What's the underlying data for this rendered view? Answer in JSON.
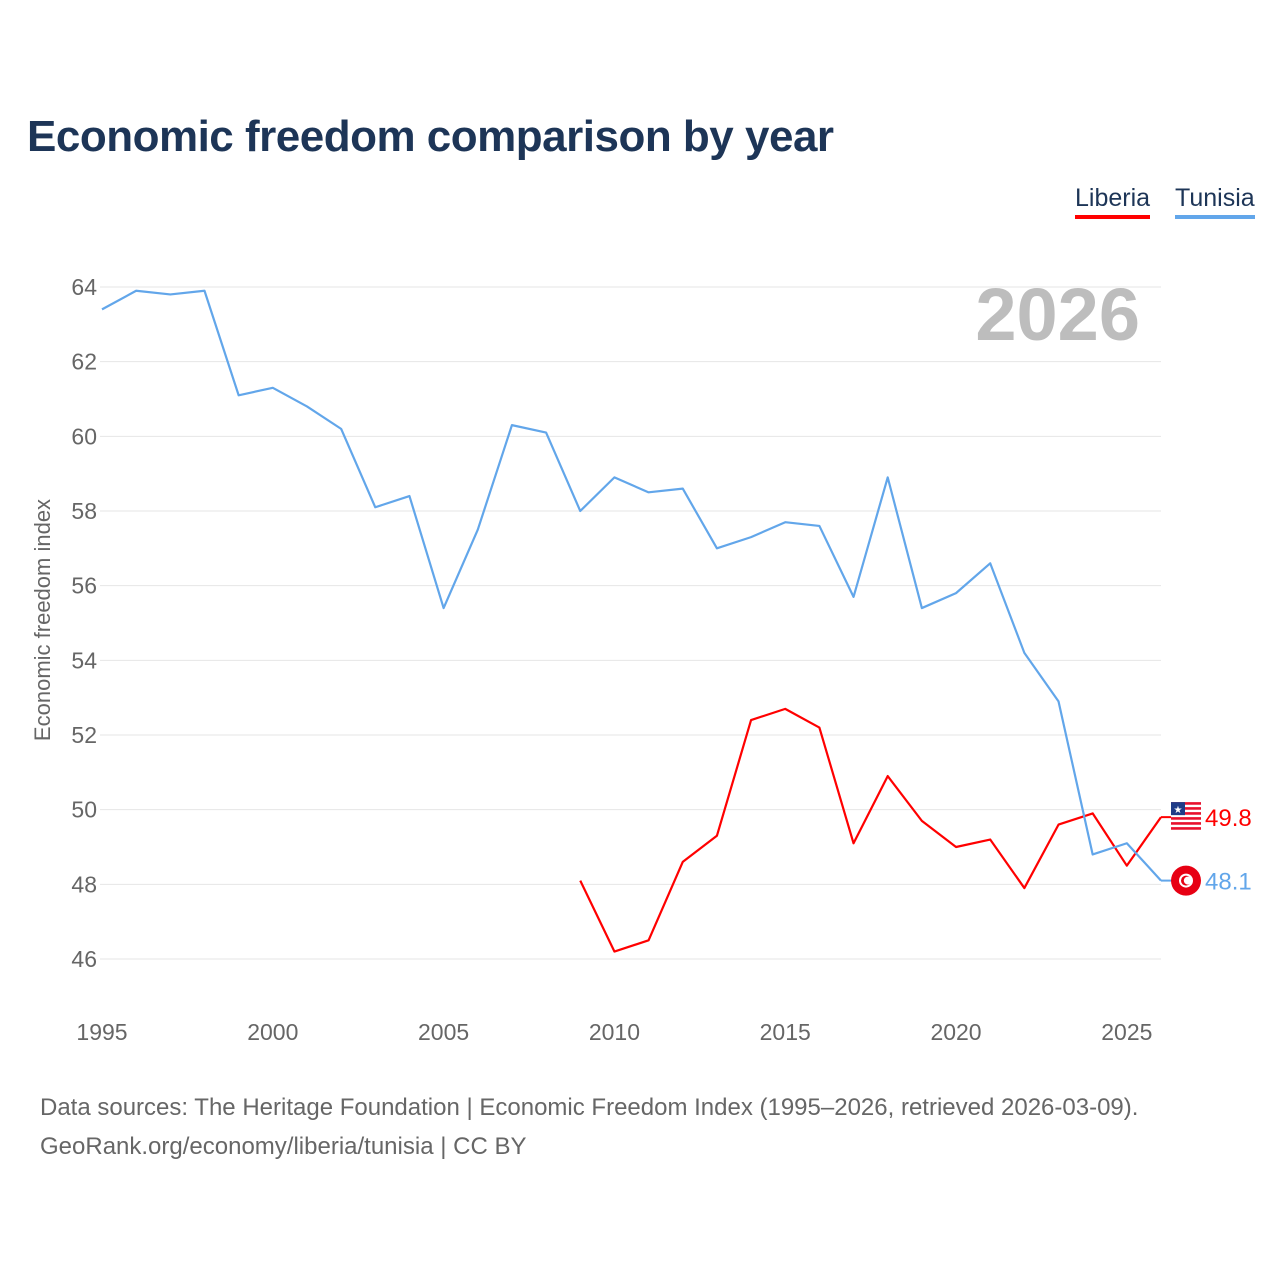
{
  "title": "Economic freedom comparison by year",
  "legend": [
    {
      "label": "Liberia",
      "color": "#ff0000"
    },
    {
      "label": "Tunisia",
      "color": "#62a6ea"
    }
  ],
  "source_lines": [
    "Data sources: The Heritage Foundation | Economic Freedom Index (1995–2026, retrieved 2026-03-09).",
    "GeoRank.org/economy/liberia/tunisia | CC BY"
  ],
  "chart_data": {
    "type": "line",
    "title": "Economic freedom comparison by year",
    "xlabel": "",
    "ylabel": "Economic freedom index",
    "year_watermark": "2026",
    "xlim": [
      1995,
      2026
    ],
    "ylim": [
      45,
      64.5
    ],
    "xticks": [
      1995,
      2000,
      2005,
      2010,
      2015,
      2020,
      2025
    ],
    "yticks": [
      46,
      48,
      50,
      52,
      54,
      56,
      58,
      60,
      62,
      64
    ],
    "grid": true,
    "legend_position": "top-right",
    "series": [
      {
        "name": "Liberia",
        "color": "#ff0000",
        "end_label": "49.8",
        "flag": "liberia-flag",
        "x": [
          2009,
          2010,
          2011,
          2012,
          2013,
          2014,
          2015,
          2016,
          2017,
          2018,
          2019,
          2020,
          2021,
          2022,
          2023,
          2024,
          2025,
          2026
        ],
        "values": [
          48.1,
          46.2,
          46.5,
          48.6,
          49.3,
          52.4,
          52.7,
          52.2,
          49.1,
          50.9,
          49.7,
          49.0,
          49.2,
          47.9,
          49.6,
          49.9,
          48.5,
          49.8
        ]
      },
      {
        "name": "Tunisia",
        "color": "#62a6ea",
        "end_label": "48.1",
        "flag": "tunisia-flag",
        "x": [
          1995,
          1996,
          1997,
          1998,
          1999,
          2000,
          2001,
          2002,
          2003,
          2004,
          2005,
          2006,
          2007,
          2008,
          2009,
          2010,
          2011,
          2012,
          2013,
          2014,
          2015,
          2016,
          2017,
          2018,
          2019,
          2020,
          2021,
          2022,
          2023,
          2024,
          2025,
          2026
        ],
        "values": [
          63.4,
          63.9,
          63.8,
          63.9,
          61.1,
          61.3,
          60.8,
          60.2,
          58.1,
          58.4,
          55.4,
          57.5,
          60.3,
          60.1,
          58.0,
          58.9,
          58.5,
          58.6,
          57.0,
          57.3,
          57.7,
          57.6,
          55.7,
          58.9,
          55.4,
          55.8,
          56.6,
          54.2,
          52.9,
          48.8,
          49.1,
          48.1
        ]
      }
    ]
  }
}
